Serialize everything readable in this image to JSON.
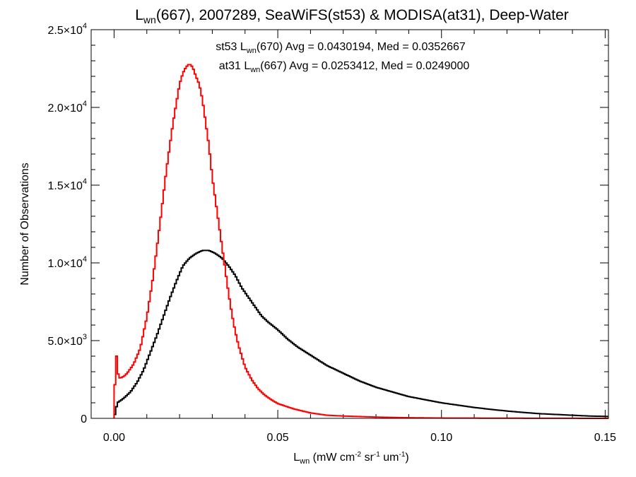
{
  "chart_data": {
    "type": "line",
    "title": {
      "l": "L",
      "sub": "wn",
      "rest": "(667), 2007289, SeaWiFS(st53) & MODISA(at31), Deep-Water"
    },
    "xlabel": {
      "l": "L",
      "sub": "wn",
      "p1": " (mW cm",
      "sup1": "-2",
      "p2": " sr",
      "sup2": "-1",
      "p3": " um",
      "sup3": "-1",
      "p4": ")"
    },
    "ylabel": "Number of Observations",
    "xlim": [
      -0.007,
      0.151
    ],
    "ylim": [
      0,
      25000
    ],
    "grid": false,
    "xticks": [
      {
        "value": 0.0,
        "label": "0.00"
      },
      {
        "value": 0.05,
        "label": "0.05"
      },
      {
        "value": 0.1,
        "label": "0.10"
      },
      {
        "value": 0.15,
        "label": "0.15"
      }
    ],
    "yticks": [
      {
        "value": 0,
        "mant": "0",
        "exp": ""
      },
      {
        "value": 5000,
        "mant": "5.0×10",
        "exp": "3"
      },
      {
        "value": 10000,
        "mant": "1.0×10",
        "exp": "4"
      },
      {
        "value": 15000,
        "mant": "1.5×10",
        "exp": "4"
      },
      {
        "value": 20000,
        "mant": "2.0×10",
        "exp": "4"
      },
      {
        "value": 25000,
        "mant": "2.5×10",
        "exp": "4"
      }
    ],
    "annotations": [
      {
        "p1": "st53 L",
        "sub": "wn",
        "p2": "(670) Avg = 0.0430194, Med = 0.0352667",
        "color": "#000000"
      },
      {
        "p1": "at31 L",
        "sub": "wn",
        "p2": "(667) Avg = 0.0253412, Med = 0.0249000",
        "color": "#ff0000"
      }
    ],
    "series": [
      {
        "color": "#000000",
        "x": [
          0.0,
          0.001,
          0.003,
          0.005,
          0.007,
          0.009,
          0.011,
          0.013,
          0.015,
          0.017,
          0.019,
          0.021,
          0.023,
          0.025,
          0.027,
          0.029,
          0.031,
          0.033,
          0.035,
          0.037,
          0.039,
          0.041,
          0.043,
          0.045,
          0.047,
          0.05,
          0.053,
          0.056,
          0.059,
          0.062,
          0.065,
          0.068,
          0.071,
          0.075,
          0.08,
          0.085,
          0.09,
          0.095,
          0.1,
          0.105,
          0.11,
          0.115,
          0.12,
          0.125,
          0.13,
          0.135,
          0.14,
          0.145,
          0.151
        ],
        "y": [
          0,
          1000,
          1300,
          1700,
          2300,
          3100,
          4200,
          5300,
          6500,
          7700,
          8800,
          9800,
          10300,
          10600,
          10800,
          10800,
          10600,
          10300,
          9800,
          9200,
          8400,
          7800,
          7200,
          6600,
          6200,
          5700,
          5100,
          4600,
          4200,
          3800,
          3400,
          3100,
          2800,
          2400,
          2000,
          1700,
          1400,
          1200,
          1000,
          850,
          700,
          580,
          470,
          380,
          300,
          250,
          200,
          150,
          120
        ]
      },
      {
        "color": "#ff0000",
        "x": [
          0.0,
          0.0003,
          0.0006,
          0.0009,
          0.0012,
          0.0015,
          0.002,
          0.003,
          0.004,
          0.005,
          0.006,
          0.008,
          0.01,
          0.012,
          0.014,
          0.016,
          0.018,
          0.02,
          0.021,
          0.022,
          0.023,
          0.024,
          0.025,
          0.026,
          0.027,
          0.028,
          0.029,
          0.03,
          0.031,
          0.032,
          0.033,
          0.034,
          0.035,
          0.036,
          0.037,
          0.038,
          0.04,
          0.042,
          0.044,
          0.046,
          0.048,
          0.05,
          0.055,
          0.06,
          0.065,
          0.07,
          0.08,
          0.09,
          0.1,
          0.12,
          0.151
        ],
        "y": [
          0,
          2600,
          4200,
          3800,
          2900,
          2600,
          2600,
          2700,
          2900,
          3200,
          3500,
          4500,
          6500,
          9200,
          12500,
          16000,
          19000,
          21500,
          22200,
          22600,
          22800,
          22600,
          22000,
          21500,
          20500,
          19000,
          17500,
          15500,
          14000,
          12500,
          11000,
          9500,
          8000,
          6700,
          5600,
          4700,
          3300,
          2500,
          1900,
          1500,
          1200,
          950,
          600,
          350,
          200,
          150,
          80,
          40,
          20,
          10,
          0
        ]
      }
    ]
  }
}
